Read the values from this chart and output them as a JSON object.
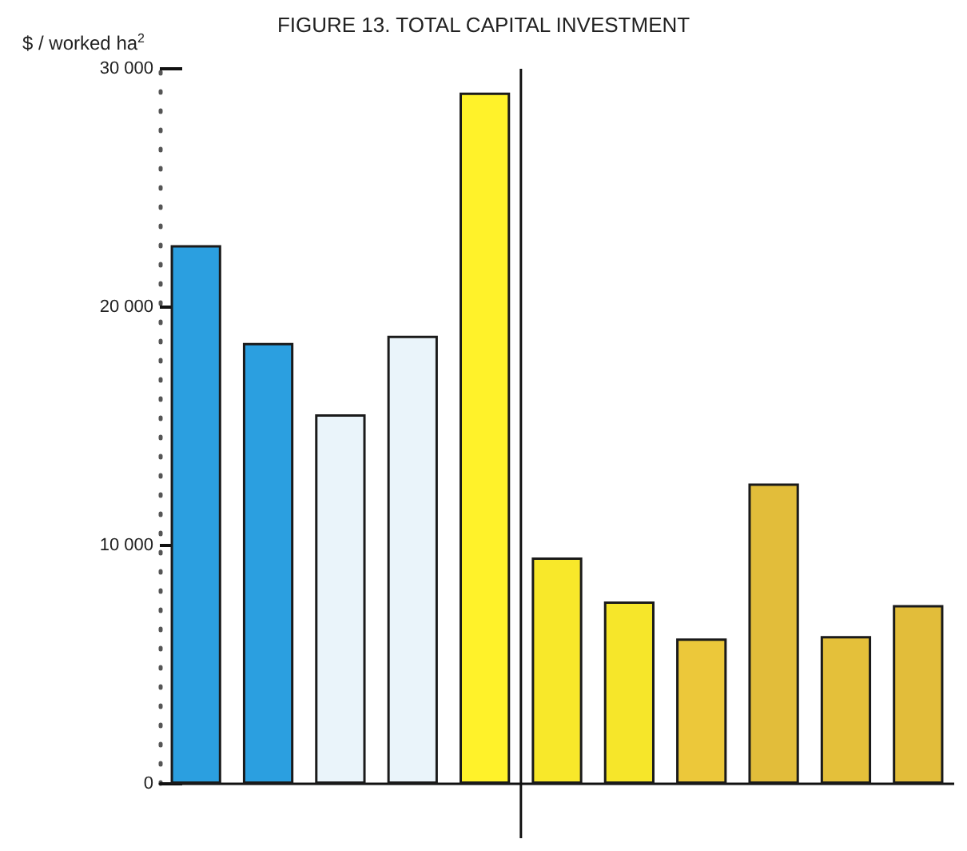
{
  "chart_data": {
    "type": "bar",
    "title": "FIGURE 13. TOTAL CAPITAL INVESTMENT",
    "ylabel": "$ / worked ha$^{2}$",
    "categories": [
      null,
      null,
      null,
      null,
      null,
      null,
      null,
      null,
      null,
      null,
      null
    ],
    "values": [
      22600,
      18500,
      15500,
      18800,
      29000,
      9500,
      7650,
      6100,
      12600,
      6200,
      7500
    ],
    "colors": [
      "#2b9fe0",
      "#2b9fe0",
      "#eaf4fa",
      "#eaf4fa",
      "#fff22a",
      "#f8e82a",
      "#f6e62a",
      "#ecc83a",
      "#e2bd3a",
      "#e4c03a",
      "#e2bd3a"
    ],
    "ylim": [
      0,
      30000
    ],
    "yticks": [
      {
        "value": 0,
        "label": "0"
      },
      {
        "value": 10000,
        "label": "10 000"
      },
      {
        "value": 20000,
        "label": "20 000"
      },
      {
        "value": 30000,
        "label": "30 000"
      }
    ],
    "grid": false
  }
}
